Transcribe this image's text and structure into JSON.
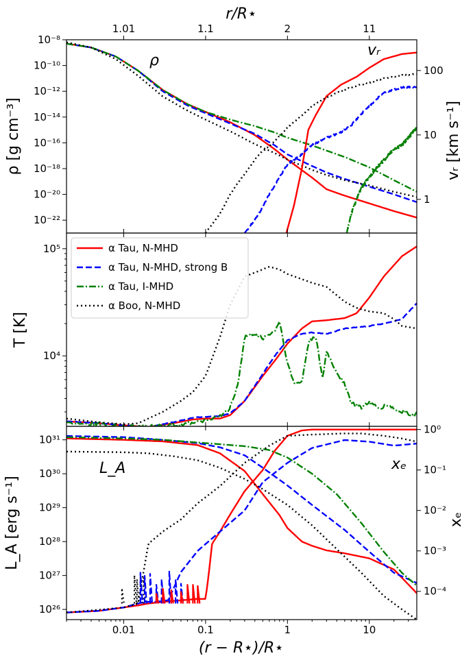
{
  "colors": {
    "alpha_tau_nmhd": "#ff0000",
    "alpha_tau_nmhd_strongB": "#0000ff",
    "alpha_tau_imhd": "#008000",
    "alpha_boo_nmhd": "#000000"
  },
  "legend": {
    "entries": [
      {
        "label": "α Tau, N-MHD",
        "color": "#ff0000",
        "dash": "solid"
      },
      {
        "label": "α Tau, N-MHD, strong B",
        "color": "#0000ff",
        "dash": "dashed"
      },
      {
        "label": "α Tau, I-MHD",
        "color": "#008000",
        "dash": "dashdot"
      },
      {
        "label": "α Boo, N-MHD",
        "color": "#000000",
        "dash": "dotted"
      }
    ]
  },
  "axes": {
    "top_xlabel": "r/R⋆",
    "top_ticks": [
      "1.01",
      "1.1",
      "2",
      "11"
    ],
    "bottom_xlabel": "(r − R⋆)/R⋆",
    "bottom_ticks": [
      "0.01",
      "0.1",
      "1",
      "10"
    ]
  },
  "chart_data": [
    {
      "type": "line",
      "panel": "density_and_velocity",
      "xscale": "log",
      "xlim": [
        0.002,
        38
      ],
      "ylabel": "ρ [g cm⁻³]",
      "yscale": "log",
      "ylim": [
        1e-23,
        1e-08
      ],
      "yticks": [
        {
          "exp": -8,
          "label": "10⁻⁸"
        },
        {
          "exp": -10,
          "label": "10⁻¹⁰"
        },
        {
          "exp": -12,
          "label": "10⁻¹²"
        },
        {
          "exp": -14,
          "label": "10⁻¹⁴"
        },
        {
          "exp": -16,
          "label": "10⁻¹⁶"
        },
        {
          "exp": -18,
          "label": "10⁻¹⁸"
        },
        {
          "exp": -20,
          "label": "10⁻²⁰"
        },
        {
          "exp": -22,
          "label": "10⁻²²"
        }
      ],
      "y2label": "vᵣ [km s⁻¹]",
      "y2scale": "log",
      "y2lim": [
        0.3,
        300
      ],
      "y2ticks": [
        {
          "v": 1,
          "label": "1"
        },
        {
          "v": 10,
          "label": "10"
        },
        {
          "v": 100,
          "label": "100"
        }
      ],
      "annotations": [
        {
          "text": "ρ"
        },
        {
          "text": "vᵣ"
        }
      ],
      "series": [
        {
          "name": "ρ, α Tau, N-MHD",
          "key": "alpha_tau_nmhd",
          "axis": "left",
          "x": [
            0.002,
            0.004,
            0.008,
            0.015,
            0.03,
            0.06,
            0.1,
            0.2,
            0.4,
            0.7,
            1,
            2,
            3,
            5,
            10,
            20,
            38
          ],
          "log_y": [
            -8.3,
            -8.6,
            -9.3,
            -10.4,
            -11.9,
            -13.0,
            -13.6,
            -14.4,
            -15.4,
            -16.5,
            -17.3,
            -18.7,
            -19.6,
            -20.1,
            -20.7,
            -21.3,
            -21.8
          ]
        },
        {
          "name": "ρ, α Tau, N-MHD, strong B",
          "key": "alpha_tau_nmhd_strongB",
          "axis": "left",
          "x": [
            0.002,
            0.004,
            0.008,
            0.015,
            0.03,
            0.06,
            0.1,
            0.2,
            0.4,
            0.7,
            1,
            2,
            3,
            5,
            10,
            20,
            38
          ],
          "log_y": [
            -8.3,
            -8.6,
            -9.3,
            -10.4,
            -12.0,
            -13.1,
            -13.7,
            -14.5,
            -15.3,
            -16.2,
            -16.9,
            -17.8,
            -18.3,
            -18.8,
            -19.4,
            -20.0,
            -20.6
          ]
        },
        {
          "name": "ρ, α Tau, I-MHD",
          "key": "alpha_tau_imhd",
          "axis": "left",
          "x": [
            0.002,
            0.004,
            0.008,
            0.015,
            0.03,
            0.06,
            0.1,
            0.2,
            0.4,
            0.7,
            1,
            2,
            3,
            5,
            10,
            20,
            38
          ],
          "log_y": [
            -8.3,
            -8.6,
            -9.3,
            -10.4,
            -11.9,
            -13.0,
            -13.6,
            -14.2,
            -14.7,
            -15.2,
            -15.6,
            -16.2,
            -16.6,
            -17.1,
            -17.9,
            -18.9,
            -19.8
          ]
        },
        {
          "name": "ρ, α Boo, N-MHD",
          "key": "alpha_boo_nmhd",
          "axis": "left",
          "x": [
            0.002,
            0.004,
            0.008,
            0.015,
            0.03,
            0.06,
            0.1,
            0.2,
            0.4,
            0.7,
            1,
            2,
            3,
            5,
            10,
            20,
            38
          ],
          "log_y": [
            -8.2,
            -8.6,
            -9.5,
            -10.8,
            -12.4,
            -13.5,
            -14.2,
            -15.1,
            -16.1,
            -16.8,
            -17.3,
            -18.1,
            -18.5,
            -18.9,
            -19.3,
            -19.8,
            -20.2
          ]
        },
        {
          "name": "vᵣ, α Tau, N-MHD",
          "key": "alpha_tau_nmhd",
          "axis": "right",
          "x": [
            0.97,
            1.2,
            1.5,
            1.8,
            2.2,
            3,
            4.5,
            7,
            10,
            15,
            25,
            38
          ],
          "y": [
            0.3,
            0.8,
            3,
            12,
            20,
            40,
            60,
            80,
            110,
            150,
            180,
            190
          ]
        },
        {
          "name": "vᵣ, α Tau, N-MHD, strong B",
          "key": "alpha_tau_nmhd_strongB",
          "axis": "right",
          "x": [
            0.3,
            0.45,
            0.6,
            0.8,
            1,
            1.5,
            2,
            3,
            4.5,
            6,
            9,
            15,
            25,
            38
          ],
          "y": [
            0.3,
            0.6,
            1.2,
            2.2,
            3.5,
            5,
            7,
            9,
            11,
            14,
            25,
            45,
            55,
            55
          ]
        },
        {
          "name": "vᵣ, α Tau, I-MHD",
          "key": "alpha_tau_imhd",
          "axis": "right",
          "x": [
            5.3,
            6,
            7,
            8,
            10,
            12,
            15,
            20,
            25,
            30,
            38
          ],
          "y": [
            0.3,
            0.6,
            1,
            1.5,
            2.2,
            3,
            4,
            6,
            7,
            9,
            13
          ]
        },
        {
          "name": "vᵣ, α Boo, N-MHD",
          "key": "alpha_boo_nmhd",
          "axis": "right",
          "x": [
            0.1,
            0.15,
            0.2,
            0.3,
            0.45,
            0.7,
            1,
            1.5,
            2,
            3,
            4,
            6,
            10,
            15,
            25,
            38
          ],
          "y": [
            0.3,
            0.6,
            1.2,
            2.5,
            5,
            8,
            13,
            20,
            28,
            38,
            45,
            55,
            65,
            75,
            85,
            88
          ]
        }
      ]
    },
    {
      "type": "line",
      "panel": "temperature",
      "xscale": "log",
      "xlim": [
        0.002,
        38
      ],
      "ylabel": "T [K]",
      "yscale": "log",
      "ylim": [
        2200,
        140000
      ],
      "yticks": [
        {
          "exp": 4,
          "label": "10⁴"
        },
        {
          "exp": 5,
          "label": "10⁵"
        }
      ],
      "series": [
        {
          "name": "T, α Tau, N-MHD",
          "key": "alpha_tau_nmhd",
          "x": [
            0.002,
            0.005,
            0.01,
            0.02,
            0.04,
            0.07,
            0.1,
            0.15,
            0.2,
            0.3,
            0.5,
            0.7,
            1,
            1.5,
            2,
            3,
            5,
            7,
            10,
            15,
            25,
            38
          ],
          "y": [
            2450,
            2350,
            2250,
            2170,
            2350,
            2550,
            2600,
            2600,
            2800,
            3800,
            6500,
            9000,
            13000,
            18000,
            21000,
            21500,
            22500,
            25000,
            35000,
            55000,
            85000,
            105000
          ]
        },
        {
          "name": "T, α Tau, N-MHD, strong B",
          "key": "alpha_tau_nmhd_strongB",
          "x": [
            0.002,
            0.005,
            0.01,
            0.02,
            0.04,
            0.07,
            0.1,
            0.15,
            0.2,
            0.3,
            0.5,
            0.7,
            1,
            1.5,
            2,
            3,
            5,
            7,
            10,
            15,
            25,
            38
          ],
          "y": [
            2450,
            2350,
            2250,
            2150,
            2400,
            2650,
            2700,
            2750,
            2900,
            3800,
            6800,
            10000,
            14000,
            16000,
            16500,
            16000,
            18000,
            18500,
            19000,
            20000,
            22000,
            31000
          ]
        },
        {
          "name": "T, α Tau, I-MHD",
          "key": "alpha_tau_imhd",
          "x": [
            0.002,
            0.005,
            0.01,
            0.02,
            0.04,
            0.07,
            0.1,
            0.15,
            0.2,
            0.25,
            0.3,
            0.4,
            0.5,
            0.7,
            0.8,
            1,
            1.2,
            1.5,
            1.8,
            2.2,
            2.7,
            3,
            3.5,
            4,
            5,
            6,
            8,
            10,
            13,
            17,
            22,
            28,
            35,
            38
          ],
          "y": [
            2400,
            2300,
            2200,
            2200,
            2250,
            2400,
            2500,
            2700,
            3300,
            5500,
            15000,
            16000,
            14500,
            17000,
            21000,
            8500,
            5500,
            5600,
            13500,
            15500,
            6000,
            11000,
            8500,
            7000,
            5500,
            3600,
            3300,
            3700,
            3200,
            3500,
            3000,
            3000,
            2700,
            3000
          ]
        },
        {
          "name": "T, α Boo, N-MHD",
          "key": "alpha_boo_nmhd",
          "x": [
            0.002,
            0.005,
            0.01,
            0.015,
            0.02,
            0.03,
            0.05,
            0.07,
            0.1,
            0.15,
            0.2,
            0.3,
            0.45,
            0.6,
            0.8,
            1,
            1.5,
            2,
            3,
            5,
            7,
            10,
            15,
            20,
            25,
            38
          ],
          "y": [
            2600,
            2400,
            2300,
            2350,
            2600,
            3000,
            3800,
            4600,
            6500,
            15000,
            30000,
            55000,
            62000,
            68000,
            64000,
            58000,
            52000,
            48000,
            44000,
            32000,
            28000,
            26000,
            25000,
            22000,
            19000,
            18000
          ]
        }
      ]
    },
    {
      "type": "line",
      "panel": "alfven_luminosity_and_ionization",
      "xscale": "log",
      "xlim": [
        0.002,
        38
      ],
      "xlabel": "(r − R⋆)/R⋆",
      "ylabel": "L_A [erg s⁻¹]",
      "yscale": "log",
      "ylim": [
        5e+25,
        2.5e+31
      ],
      "yticks": [
        {
          "exp": 26,
          "label": "10²⁶"
        },
        {
          "exp": 27,
          "label": "10²⁷"
        },
        {
          "exp": 28,
          "label": "10²⁸"
        },
        {
          "exp": 29,
          "label": "10²⁹"
        },
        {
          "exp": 30,
          "label": "10³⁰"
        },
        {
          "exp": 31,
          "label": "10³¹"
        }
      ],
      "y2label": "xₑ",
      "y2scale": "log",
      "y2lim": [
        2e-05,
        1.2
      ],
      "y2ticks": [
        {
          "v": 0.0001,
          "label": "10⁻⁴"
        },
        {
          "v": 0.001,
          "label": "10⁻³"
        },
        {
          "v": 0.01,
          "label": "10⁻²"
        },
        {
          "v": 0.1,
          "label": "10⁻¹"
        },
        {
          "v": 1,
          "label": "10⁰"
        }
      ],
      "annotations": [
        {
          "text": "L_A"
        },
        {
          "text": "xₑ"
        }
      ],
      "series": [
        {
          "name": "L_A, α Tau, N-MHD",
          "key": "alpha_tau_nmhd",
          "axis": "left",
          "x": [
            0.002,
            0.01,
            0.03,
            0.08,
            0.15,
            0.3,
            0.5,
            0.8,
            1,
            1.5,
            2,
            3,
            5,
            10,
            20,
            38
          ],
          "y": [
            1.1e+31,
            1e+31,
            9e+30,
            7e+30,
            4e+30,
            1.2e+30,
            2.5e+29,
            6e+28,
            2.5e+28,
            1e+28,
            7.5e+27,
            5.5e+27,
            4.5e+27,
            3.2e+27,
            1.5e+27,
            3e+26
          ]
        },
        {
          "name": "L_A, α Tau, N-MHD, strong B",
          "key": "alpha_tau_nmhd_strongB",
          "axis": "left",
          "x": [
            0.002,
            0.01,
            0.03,
            0.08,
            0.15,
            0.3,
            0.5,
            1,
            2,
            5,
            10,
            20,
            38
          ],
          "y": [
            1.3e+31,
            1.2e+31,
            1e+31,
            8e+30,
            6e+30,
            3.5e+30,
            1.5e+30,
            4.5e+29,
            1.2e+29,
            2.2e+28,
            5e+27,
            1.2e+27,
            6e+26
          ]
        },
        {
          "name": "L_A, α Tau, I-MHD",
          "key": "alpha_tau_imhd",
          "axis": "left",
          "x": [
            0.002,
            0.01,
            0.03,
            0.1,
            0.3,
            0.6,
            1,
            2,
            4,
            8,
            15,
            25,
            38
          ],
          "y": [
            1.2e+31,
            1.1e+31,
            1e+31,
            8e+30,
            6.5e+30,
            5e+30,
            3e+30,
            1e+30,
            2.5e+29,
            3.5e+28,
            5e+27,
            1.2e+27,
            5e+26
          ]
        },
        {
          "name": "L_A, α Boo, N-MHD",
          "key": "alpha_boo_nmhd",
          "axis": "left",
          "x": [
            0.002,
            0.01,
            0.02,
            0.04,
            0.08,
            0.15,
            0.3,
            0.5,
            1,
            2,
            4,
            8,
            15,
            25,
            38
          ],
          "y": [
            4.5e+30,
            4.3e+30,
            4e+30,
            3.3e+30,
            2.5e+30,
            1.5e+30,
            7e+29,
            3.5e+29,
            1.2e+29,
            3e+28,
            6e+27,
            1.2e+27,
            2.5e+26,
            1e+26,
            5e+25
          ]
        },
        {
          "name": "xₑ, α Tau, N-MHD",
          "key": "alpha_tau_nmhd",
          "axis": "right",
          "x": [
            0.002,
            0.005,
            0.01,
            0.015,
            0.02,
            0.03,
            0.05,
            0.08,
            0.1,
            0.11,
            0.12,
            0.15,
            0.2,
            0.3,
            0.5,
            0.7,
            1,
            1.5,
            2,
            5,
            10,
            38
          ],
          "y": [
            3e-05,
            3.3e-05,
            4e-05,
            4.5e-05,
            5e-05,
            5.5e-05,
            6e-05,
            6.5e-05,
            6.5e-05,
            0.0003,
            0.0015,
            0.003,
            0.008,
            0.03,
            0.1,
            0.3,
            0.7,
            0.95,
            1,
            1,
            1,
            1
          ]
        },
        {
          "name": "xₑ, α Tau, N-MHD, strong B",
          "key": "alpha_tau_nmhd_strongB",
          "axis": "right",
          "x": [
            0.002,
            0.005,
            0.01,
            0.015,
            0.018,
            0.025,
            0.035,
            0.05,
            0.08,
            0.15,
            0.3,
            0.5,
            1,
            2,
            5,
            10,
            20,
            38
          ],
          "y": [
            3e-05,
            3.3e-05,
            4e-05,
            5e-05,
            5.5e-05,
            5.5e-05,
            6e-05,
            0.0003,
            0.001,
            0.003,
            0.01,
            0.05,
            0.15,
            0.35,
            0.55,
            0.5,
            0.4,
            0.45
          ]
        },
        {
          "name": "xₑ, α Boo, N-MHD",
          "key": "alpha_boo_nmhd",
          "axis": "right",
          "x": [
            0.002,
            0.005,
            0.01,
            0.015,
            0.02,
            0.03,
            0.05,
            0.08,
            0.15,
            0.3,
            0.6,
            1,
            2,
            5,
            8,
            15,
            25,
            38
          ],
          "y": [
            3e-05,
            3.5e-05,
            4e-05,
            5e-05,
            0.0015,
            0.003,
            0.006,
            0.015,
            0.04,
            0.15,
            0.4,
            0.7,
            0.75,
            0.8,
            0.8,
            0.7,
            0.6,
            0.5
          ]
        }
      ]
    }
  ]
}
